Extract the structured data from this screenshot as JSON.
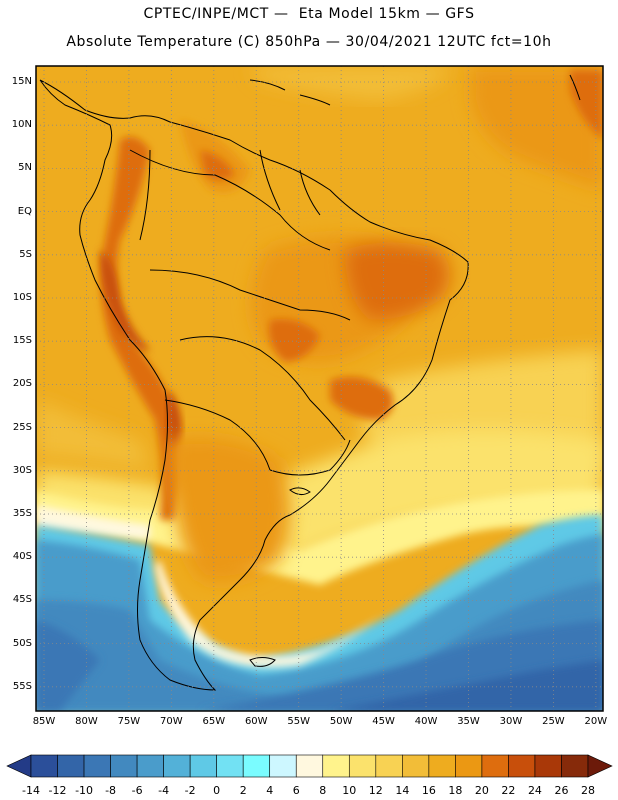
{
  "header": {
    "line1": "CPTEC/INPE/MCT —  Eta Model 15km — GFS",
    "line2": "Absolute Temperature (C) 850hPa — 30/04/2021 12UTC fct=10h"
  },
  "axes": {
    "lat_labels": [
      "15N",
      "10N",
      "5N",
      "EQ",
      "5S",
      "10S",
      "15S",
      "20S",
      "25S",
      "30S",
      "35S",
      "40S",
      "45S",
      "50S",
      "55S"
    ],
    "lon_labels": [
      "85W",
      "80W",
      "75W",
      "70W",
      "65W",
      "60W",
      "55W",
      "50W",
      "45W",
      "40W",
      "35W",
      "30W",
      "25W",
      "20W"
    ]
  },
  "colorbar": {
    "ticks": [
      "-14",
      "-12",
      "-10",
      "-8",
      "-6",
      "-4",
      "-2",
      "0",
      "2",
      "4",
      "6",
      "8",
      "10",
      "12",
      "14",
      "16",
      "18",
      "20",
      "22",
      "24",
      "26",
      "28"
    ],
    "colors": [
      "#233b87",
      "#2b4f9a",
      "#3365a8",
      "#3b77b5",
      "#4289bf",
      "#4a9ccb",
      "#53b1d8",
      "#5fc9e6",
      "#72e1f3",
      "#7afcff",
      "#cdf7ff",
      "#fff8df",
      "#fff38c",
      "#fbe26c",
      "#f8d253",
      "#f2bd38",
      "#eeac1f",
      "#eb9813",
      "#de6d0e",
      "#c84f0b",
      "#a93808",
      "#862a0a",
      "#6c1a0a"
    ]
  }
}
